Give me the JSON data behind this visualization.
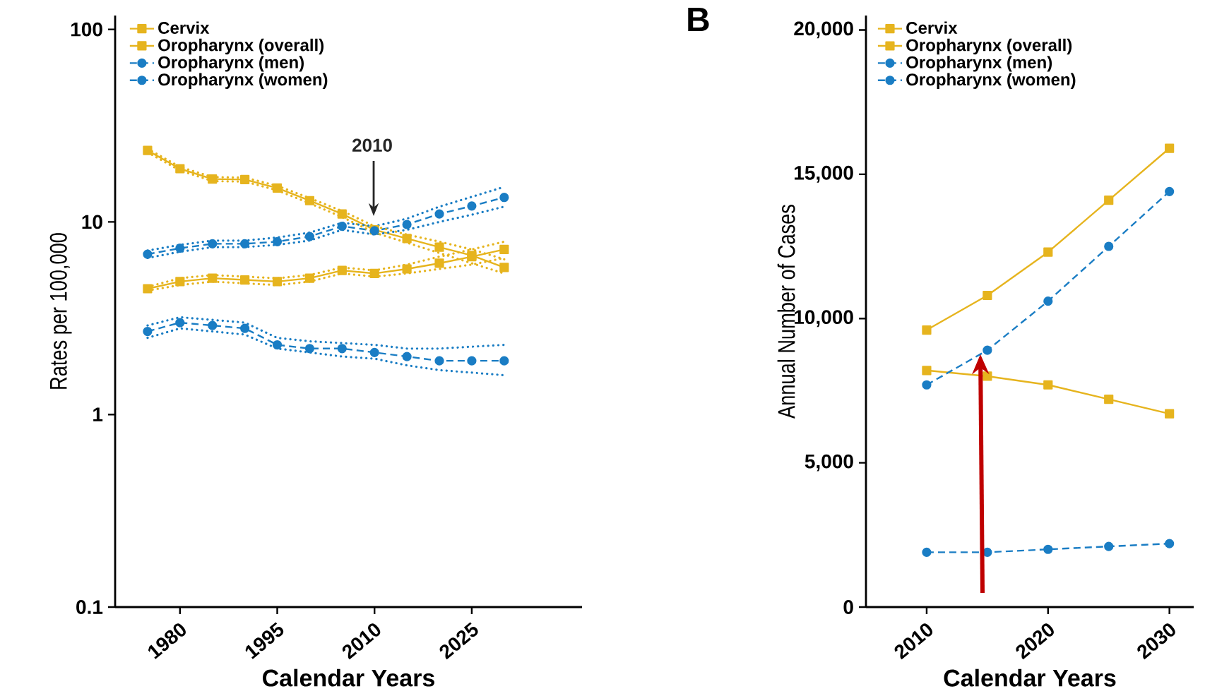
{
  "chart_data": [
    {
      "type": "line",
      "ylabel": "Rates per 100,000",
      "xlabel": "Calendar Years",
      "log": "y",
      "legend": "top left",
      "grid": false,
      "x": [
        1975,
        1980,
        1985,
        1990,
        1995,
        2000,
        2005,
        2010,
        2015,
        2020,
        2025,
        2030
      ],
      "xlim": [
        1970,
        2042
      ],
      "xticks": [
        1980,
        1995,
        2010,
        2025
      ],
      "ylim": [
        0.1,
        118
      ],
      "yticks": [
        0.1,
        1,
        10,
        100
      ],
      "annotations": [
        "2010"
      ],
      "series": [
        {
          "name": "Cervix",
          "color": "#e6b41e",
          "marker": "square",
          "line_style": "solid",
          "values": [
            23.5,
            18.9,
            16.7,
            16.6,
            15.0,
            12.9,
            11.0,
            9.1,
            8.2,
            7.4,
            6.7,
            5.8
          ]
        },
        {
          "name": "Oropharynx (overall)",
          "color": "#e6b41e",
          "marker": "square",
          "line_style": "solid",
          "values": [
            4.5,
            4.9,
            5.1,
            5.0,
            4.9,
            5.1,
            5.6,
            5.4,
            5.7,
            6.1,
            6.6,
            7.2
          ]
        },
        {
          "name": "Oropharynx (men)",
          "color": "#1a7dc4",
          "marker": "circle",
          "line_style": "dashed",
          "values": [
            6.8,
            7.3,
            7.7,
            7.7,
            7.9,
            8.4,
            9.5,
            9.0,
            9.7,
            11.0,
            12.1,
            13.4
          ]
        },
        {
          "name": "Oropharynx (women)",
          "color": "#1a7dc4",
          "marker": "circle",
          "line_style": "dashed",
          "values": [
            2.7,
            3.0,
            2.9,
            2.8,
            2.3,
            2.2,
            2.2,
            2.1,
            2.0,
            1.9,
            1.9,
            1.9
          ]
        },
        {
          "color": "#e6b41e",
          "marker": "none",
          "line_style": "dotted",
          "values": [
            23,
            18.5,
            16.3,
            16.2,
            14.6,
            12.5,
            10.6,
            8.8,
            7.8,
            6.9,
            6.1,
            5.4
          ]
        },
        {
          "color": "#e6b41e",
          "marker": "none",
          "line_style": "dotted",
          "values": [
            24,
            19.3,
            17.1,
            17.0,
            15.4,
            13.3,
            11.4,
            9.5,
            8.6,
            7.9,
            7.2,
            6.4
          ]
        },
        {
          "color": "#e6b41e",
          "marker": "none",
          "line_style": "dotted",
          "values": [
            4.4,
            4.7,
            4.9,
            4.8,
            4.7,
            4.9,
            5.4,
            5.2,
            5.4,
            5.7,
            6.0,
            6.5
          ]
        },
        {
          "color": "#e6b41e",
          "marker": "none",
          "line_style": "dotted",
          "values": [
            4.6,
            5.1,
            5.3,
            5.2,
            5.1,
            5.3,
            5.8,
            5.6,
            6.0,
            6.6,
            7.2,
            7.9
          ]
        },
        {
          "color": "#1a7dc4",
          "marker": "none",
          "line_style": "dotted",
          "values": [
            6.5,
            7.0,
            7.4,
            7.4,
            7.6,
            8.0,
            9.1,
            8.6,
            9.1,
            10.0,
            10.9,
            12.0
          ]
        },
        {
          "color": "#1a7dc4",
          "marker": "none",
          "line_style": "dotted",
          "values": [
            7.1,
            7.6,
            8.0,
            8.0,
            8.3,
            8.8,
            9.9,
            9.5,
            10.4,
            12.0,
            13.5,
            15.2
          ]
        },
        {
          "color": "#1a7dc4",
          "marker": "none",
          "line_style": "dotted",
          "values": [
            2.5,
            2.8,
            2.7,
            2.6,
            2.2,
            2.1,
            2.0,
            1.95,
            1.8,
            1.7,
            1.65,
            1.6
          ]
        },
        {
          "color": "#1a7dc4",
          "marker": "none",
          "line_style": "dotted",
          "values": [
            2.9,
            3.2,
            3.1,
            3.0,
            2.5,
            2.4,
            2.35,
            2.3,
            2.2,
            2.2,
            2.25,
            2.3
          ]
        }
      ]
    },
    {
      "type": "line",
      "ylabel": "Annual Number of Cases",
      "xlabel": "Calendar Years",
      "legend": "top left",
      "grid": false,
      "x": [
        2010,
        2015,
        2020,
        2025,
        2030
      ],
      "xlim": [
        2005,
        2032
      ],
      "xticks": [
        2010,
        2020,
        2030
      ],
      "ylim": [
        0,
        20500
      ],
      "yticks": [
        0,
        {
          "value": 5000,
          "label": "5,000"
        },
        {
          "value": 10000,
          "label": "10,000"
        },
        {
          "value": 15000,
          "label": "15,000"
        },
        {
          "value": 20000,
          "label": "20,000"
        }
      ],
      "annotations": [
        "B"
      ],
      "series": [
        {
          "name": "Cervix",
          "color": "#e6b41e",
          "marker": "square",
          "line_style": "solid",
          "values": [
            8200,
            8000,
            7700,
            7200,
            6700
          ]
        },
        {
          "name": "Oropharynx (overall)",
          "color": "#e6b41e",
          "marker": "square",
          "line_style": "solid",
          "values": [
            9600,
            10800,
            12300,
            14100,
            15900
          ]
        },
        {
          "name": "Oropharynx (men)",
          "color": "#1a7dc4",
          "marker": "circle",
          "line_style": "dashed",
          "values": [
            7700,
            8900,
            10600,
            12500,
            14400
          ]
        },
        {
          "name": "Oropharynx (women)",
          "color": "#1a7dc4",
          "marker": "circle",
          "line_style": "dashed",
          "values": [
            1900,
            1900,
            2000,
            2100,
            2200
          ]
        }
      ]
    }
  ]
}
